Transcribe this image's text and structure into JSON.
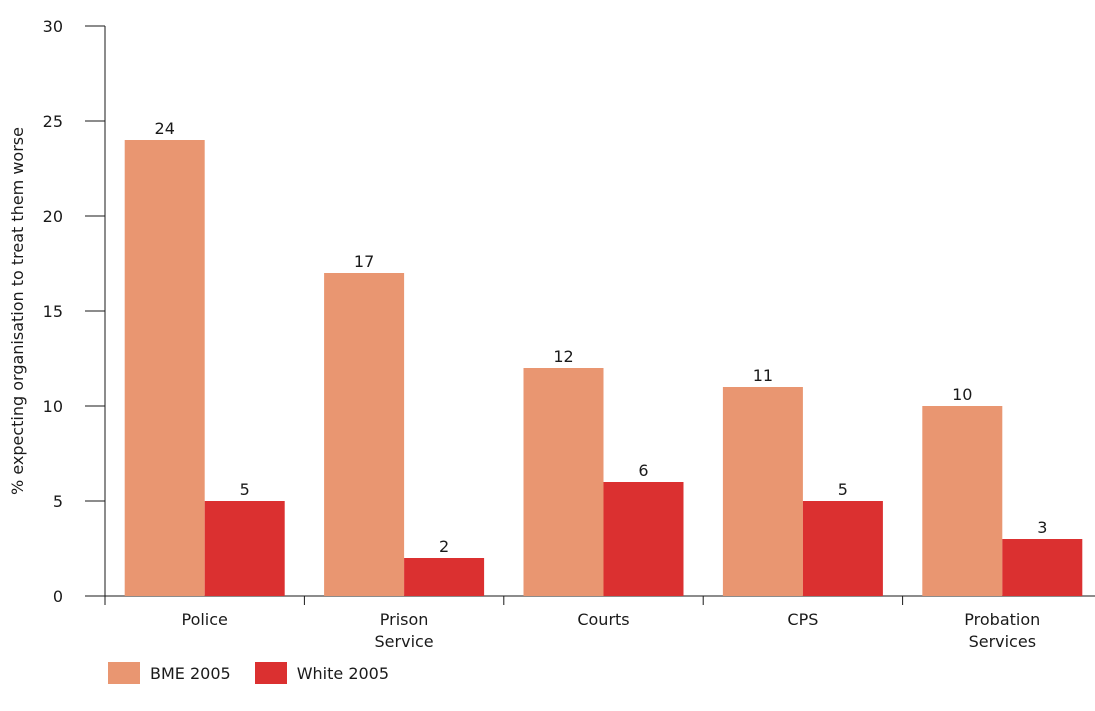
{
  "chart_data": {
    "type": "bar",
    "categories": [
      [
        "Police"
      ],
      [
        "Prison",
        "Service"
      ],
      [
        "Courts"
      ],
      [
        "CPS"
      ],
      [
        "Probation",
        "Services"
      ]
    ],
    "series": [
      {
        "name": "BME 2005",
        "color": "#E99671",
        "values": [
          24,
          17,
          12,
          11,
          10
        ]
      },
      {
        "name": "White 2005",
        "color": "#DB3030",
        "values": [
          5,
          2,
          6,
          5,
          3
        ]
      }
    ],
    "ylabel": "% expecting organisation to treat them worse",
    "xlabel": "",
    "ylim": [
      0,
      30
    ],
    "yticks": [
      0,
      5,
      10,
      15,
      20,
      25,
      30
    ],
    "data_labels": true,
    "grid": false,
    "legend_position": "bottom-left"
  }
}
